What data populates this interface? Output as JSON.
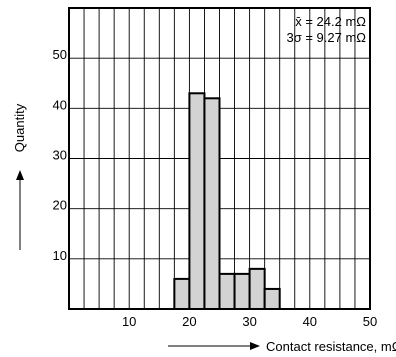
{
  "chart_data": {
    "type": "bar",
    "title": "",
    "xlabel": "Contact resistance, mΩ",
    "ylabel": "Quantity",
    "xlim": [
      0,
      50
    ],
    "ylim": [
      0,
      60
    ],
    "grid": true,
    "bin_width": 2.5,
    "bins": [
      {
        "start": 17.5,
        "end": 20,
        "value": 6
      },
      {
        "start": 20,
        "end": 22.5,
        "value": 43
      },
      {
        "start": 22.5,
        "end": 25,
        "value": 42
      },
      {
        "start": 25,
        "end": 27.5,
        "value": 7
      },
      {
        "start": 27.5,
        "end": 30,
        "value": 7
      },
      {
        "start": 30,
        "end": 32.5,
        "value": 8
      },
      {
        "start": 32.5,
        "end": 35,
        "value": 4
      }
    ],
    "x_ticks": [
      10,
      20,
      30,
      40,
      50
    ],
    "y_ticks": [
      10,
      20,
      30,
      40,
      50
    ],
    "bar_color": "#d3d3d3",
    "annotations": [
      "x̄ = 24.2 mΩ",
      "3σ = 9.27 mΩ"
    ]
  }
}
